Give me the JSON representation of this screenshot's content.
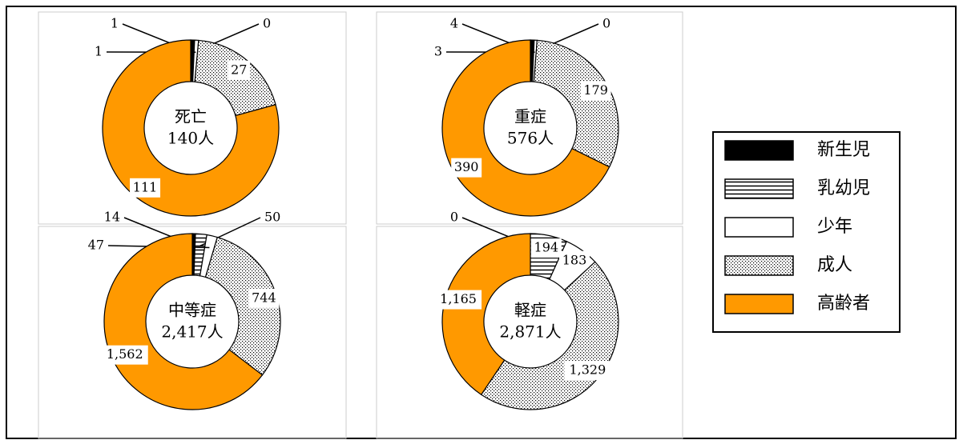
{
  "chart_data": [
    {
      "type": "pie",
      "title": "死亡",
      "subtitle": "140人",
      "categories": [
        "新生児",
        "乳幼児",
        "少年",
        "成人",
        "高齢者"
      ],
      "values": [
        1,
        0,
        1,
        27,
        111
      ]
    },
    {
      "type": "pie",
      "title": "重症",
      "subtitle": "576人",
      "categories": [
        "新生児",
        "乳幼児",
        "少年",
        "成人",
        "高齢者"
      ],
      "values": [
        4,
        0,
        3,
        179,
        390
      ]
    },
    {
      "type": "pie",
      "title": "中等症",
      "subtitle": "2,417人",
      "categories": [
        "新生児",
        "乳幼児",
        "少年",
        "成人",
        "高齢者"
      ],
      "values": [
        14,
        50,
        47,
        744,
        1562
      ],
      "value_labels": [
        "14",
        "50",
        "47",
        "744",
        "1,562"
      ]
    },
    {
      "type": "pie",
      "title": "軽症",
      "subtitle": "2,871人",
      "categories": [
        "新生児",
        "乳幼児",
        "少年",
        "成人",
        "高齢者"
      ],
      "values": [
        0,
        194,
        183,
        1329,
        1165
      ],
      "value_labels": [
        "0",
        "194",
        "183",
        "1,329",
        "1,165"
      ]
    }
  ],
  "legend": {
    "colors": [
      "#000000",
      "#ffffff",
      "#ffffff",
      "#ffffff",
      "#ff9900"
    ],
    "patterns": [
      "solid",
      "hstripe",
      "solid",
      "dots",
      "solid"
    ]
  }
}
